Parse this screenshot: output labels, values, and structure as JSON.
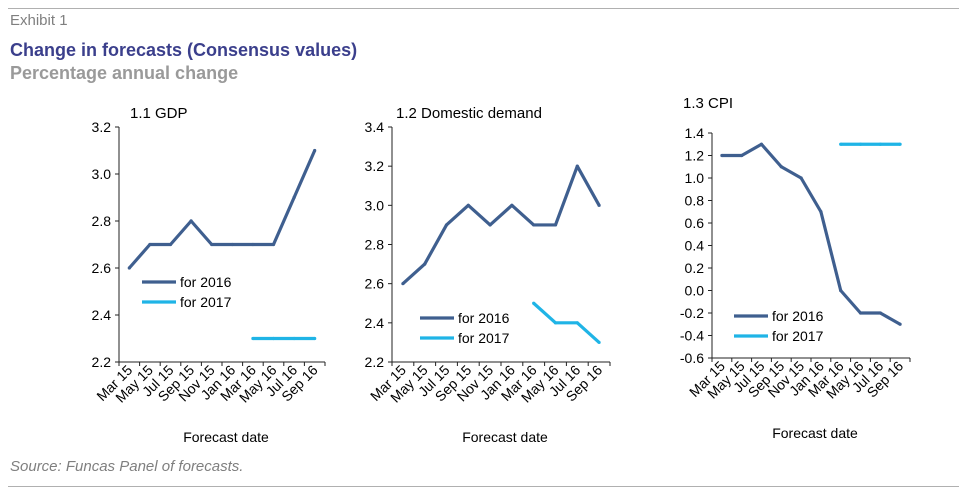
{
  "header": {
    "exhibit": "Exhibit 1",
    "title": "Change in forecasts (Consensus values)",
    "subtitle": "Percentage annual change"
  },
  "footer": {
    "source": "Source: Funcas Panel of forecasts."
  },
  "colors": {
    "for_2016": "#3f5f8f",
    "for_2017": "#1fb4e6",
    "title": "#3b3f8c"
  },
  "chart_data": [
    {
      "type": "line",
      "title": "1.1 GDP",
      "xlabel": "Forecast date",
      "ylabel": "",
      "categories": [
        "Mar 15",
        "May 15",
        "Jul 15",
        "Sep 15",
        "Nov 15",
        "Jan 16",
        "Mar 16",
        "May 16",
        "Jul 16",
        "Sep 16"
      ],
      "ylim": [
        2.2,
        3.2
      ],
      "yticks": [
        "2.2",
        "2.4",
        "2.6",
        "2.8",
        "3.0",
        "3.2"
      ],
      "legend_position": "bottom-left",
      "series": [
        {
          "name": "for 2016",
          "values": [
            2.6,
            2.7,
            2.7,
            2.8,
            2.7,
            2.7,
            2.7,
            2.7,
            2.9,
            3.1
          ]
        },
        {
          "name": "for 2017",
          "values": [
            null,
            null,
            null,
            null,
            null,
            null,
            2.3,
            2.3,
            2.3,
            2.3
          ]
        }
      ]
    },
    {
      "type": "line",
      "title": "1.2 Domestic demand",
      "xlabel": "Forecast date",
      "ylabel": "",
      "categories": [
        "Mar 15",
        "May 15",
        "Jul 15",
        "Sep 15",
        "Nov 15",
        "Jan 16",
        "Mar 16",
        "May 16",
        "Jul 16",
        "Sep 16"
      ],
      "ylim": [
        2.2,
        3.4
      ],
      "yticks": [
        "2.2",
        "2.4",
        "2.6",
        "2.8",
        "3.0",
        "3.2",
        "3.4"
      ],
      "legend_position": "bottom-left",
      "series": [
        {
          "name": "for 2016",
          "values": [
            2.6,
            2.7,
            2.9,
            3.0,
            2.9,
            3.0,
            2.9,
            2.9,
            3.2,
            3.0
          ]
        },
        {
          "name": "for 2017",
          "values": [
            null,
            null,
            null,
            null,
            null,
            null,
            2.5,
            2.4,
            2.4,
            2.3
          ]
        }
      ]
    },
    {
      "type": "line",
      "title": "1.3 CPI",
      "xlabel": "Forecast date",
      "ylabel": "",
      "categories": [
        "Mar 15",
        "May 15",
        "Jul 15",
        "Sep 15",
        "Nov 15",
        "Jan 16",
        "Mar 16",
        "May 16",
        "Jul 16",
        "Sep 16"
      ],
      "ylim": [
        -0.6,
        1.4
      ],
      "yticks": [
        "-0.6",
        "-0.4",
        "-0.2",
        "0.0",
        "0.2",
        "0.4",
        "0.6",
        "0.8",
        "1.0",
        "1.2",
        "1.4"
      ],
      "legend_position": "bottom-left",
      "series": [
        {
          "name": "for 2016",
          "values": [
            1.2,
            1.2,
            1.3,
            1.1,
            1.0,
            0.7,
            0.0,
            -0.2,
            -0.2,
            -0.3
          ]
        },
        {
          "name": "for 2017",
          "values": [
            null,
            null,
            null,
            null,
            null,
            null,
            1.3,
            1.3,
            1.3,
            1.3
          ]
        }
      ]
    }
  ]
}
